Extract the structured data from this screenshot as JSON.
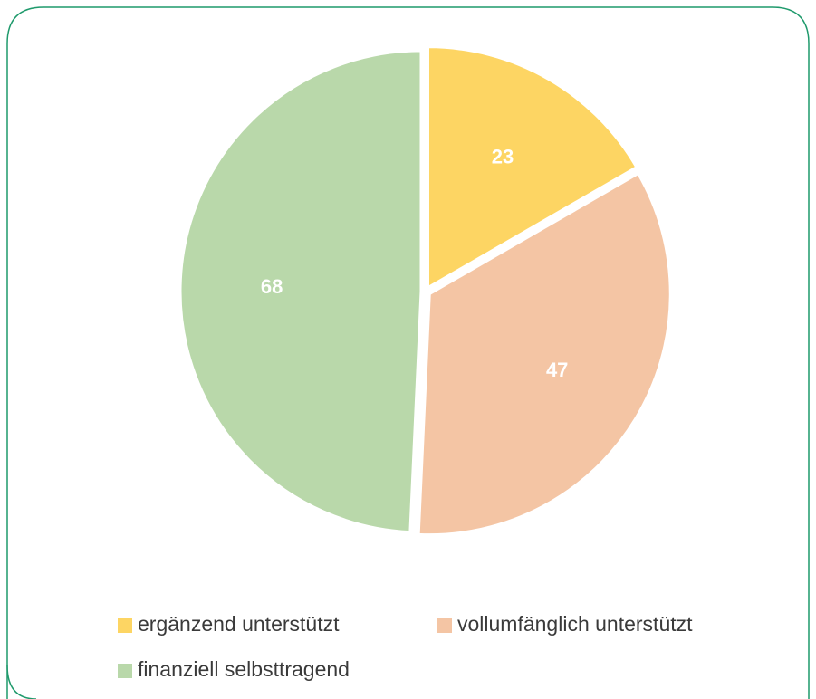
{
  "chart_data": {
    "type": "pie",
    "categories": [
      "ergänzend unterstützt",
      "vollumfänglich unterstützt",
      "finanziell selbsttragend"
    ],
    "values": [
      23,
      47,
      68
    ],
    "colors": [
      "#fdd563",
      "#f4c5a4",
      "#b9d8aa"
    ],
    "legend": "bottom"
  }
}
